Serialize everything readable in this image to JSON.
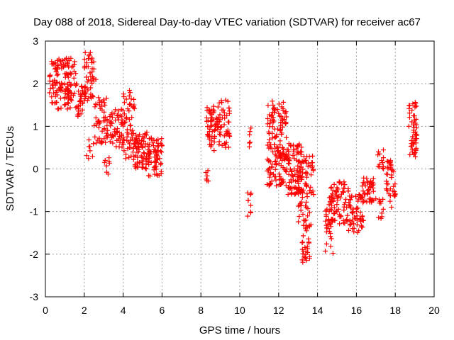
{
  "chart_data": {
    "type": "scatter",
    "title": "Day 088 of 2018, Sidereal Day-to-day VTEC variation (SDTVAR) for receiver ac67",
    "xlabel": "GPS time / hours",
    "ylabel": "SDTVAR / TECUs",
    "xlim": [
      0,
      20
    ],
    "ylim": [
      -3,
      3
    ],
    "xticks": [
      0,
      2,
      4,
      6,
      8,
      10,
      12,
      14,
      16,
      18,
      20
    ],
    "yticks": [
      -3,
      -2,
      -1,
      0,
      1,
      2,
      3
    ],
    "xtick_labels": [
      "0",
      "2",
      "4",
      "6",
      "8",
      "10",
      "12",
      "14",
      "16",
      "18",
      "20"
    ],
    "ytick_labels": [
      "-3",
      "-2",
      "-1",
      "0",
      "1",
      "2",
      "3"
    ],
    "grid": true,
    "marker": "+",
    "color": "#ff0000",
    "series": [
      {
        "name": "SDTVAR",
        "trend": [
          [
            0.25,
            2.2
          ],
          [
            0.4,
            1.9
          ],
          [
            0.6,
            2.2
          ],
          [
            0.8,
            1.9
          ],
          [
            1.0,
            2.0
          ],
          [
            1.2,
            1.85
          ],
          [
            1.5,
            2.0
          ],
          [
            1.8,
            1.5
          ],
          [
            2.0,
            1.6
          ],
          [
            2.2,
            2.4
          ],
          [
            2.4,
            2.6
          ],
          [
            2.6,
            2.1
          ],
          [
            2.8,
            1.6
          ],
          [
            3.0,
            1.2
          ],
          [
            3.2,
            0.9
          ],
          [
            3.4,
            1.1
          ],
          [
            3.6,
            0.8
          ],
          [
            3.8,
            0.85
          ],
          [
            4.0,
            0.7
          ],
          [
            4.2,
            0.75
          ],
          [
            4.4,
            0.5
          ],
          [
            4.6,
            0.6
          ],
          [
            4.8,
            0.4
          ],
          [
            5.0,
            0.5
          ],
          [
            5.2,
            0.3
          ],
          [
            5.4,
            0.4
          ],
          [
            5.6,
            0.45
          ],
          [
            5.8,
            0.6
          ],
          [
            6.0,
            0.55
          ],
          [
            8.3,
            1.2
          ],
          [
            8.5,
            1.0
          ],
          [
            8.7,
            0.9
          ],
          [
            8.9,
            1.0
          ],
          [
            9.1,
            1.2
          ],
          [
            9.3,
            0.8
          ],
          [
            9.4,
            1.1
          ],
          [
            10.5,
            0.8
          ],
          [
            10.55,
            -0.6
          ],
          [
            11.5,
            0.2
          ],
          [
            11.7,
            0.4
          ],
          [
            11.9,
            0.8
          ],
          [
            12.0,
            1.3
          ],
          [
            12.2,
            0.5
          ],
          [
            12.5,
            0.2
          ],
          [
            12.8,
            0.0
          ],
          [
            13.0,
            -0.3
          ],
          [
            13.2,
            -0.5
          ],
          [
            13.4,
            -1.2
          ],
          [
            13.6,
            -0.5
          ],
          [
            13.8,
            -0.6
          ],
          [
            14.6,
            -1.0
          ],
          [
            14.8,
            -0.5
          ],
          [
            15.0,
            -1.0
          ],
          [
            15.2,
            -1.1
          ],
          [
            15.5,
            -0.9
          ],
          [
            15.8,
            -1.2
          ],
          [
            16.0,
            -1.0
          ],
          [
            16.3,
            -0.4
          ],
          [
            16.6,
            -0.5
          ],
          [
            17.0,
            -0.7
          ],
          [
            17.3,
            0.2
          ],
          [
            17.6,
            -0.5
          ],
          [
            17.8,
            -0.2
          ],
          [
            18.0,
            -0.6
          ],
          [
            18.7,
            1.0
          ],
          [
            18.9,
            0.6
          ],
          [
            19.1,
            0.8
          ]
        ],
        "clusters": [
          {
            "x": [
              0.2,
              1.6
            ],
            "y": [
              1.4,
              2.6
            ],
            "n": 130
          },
          {
            "x": [
              1.6,
              2.0
            ],
            "y": [
              1.2,
              2.0
            ],
            "n": 25
          },
          {
            "x": [
              2.0,
              2.5
            ],
            "y": [
              1.6,
              2.75
            ],
            "n": 45
          },
          {
            "x": [
              2.1,
              2.5
            ],
            "y": [
              0.2,
              0.7
            ],
            "n": 8
          },
          {
            "x": [
              2.5,
              3.2
            ],
            "y": [
              0.6,
              1.7
            ],
            "n": 50
          },
          {
            "x": [
              3.2,
              4.0
            ],
            "y": [
              0.5,
              1.4
            ],
            "n": 50
          },
          {
            "x": [
              3.0,
              3.3
            ],
            "y": [
              -0.15,
              0.3
            ],
            "n": 8
          },
          {
            "x": [
              4.0,
              4.6
            ],
            "y": [
              0.2,
              1.9
            ],
            "n": 60
          },
          {
            "x": [
              4.6,
              5.4
            ],
            "y": [
              0.0,
              0.9
            ],
            "n": 70
          },
          {
            "x": [
              5.3,
              6.0
            ],
            "y": [
              -0.2,
              0.75
            ],
            "n": 55
          },
          {
            "x": [
              8.3,
              8.9
            ],
            "y": [
              0.7,
              1.5
            ],
            "n": 45
          },
          {
            "x": [
              8.2,
              8.4
            ],
            "y": [
              -0.3,
              0.0
            ],
            "n": 6
          },
          {
            "x": [
              8.4,
              8.7
            ],
            "y": [
              0.4,
              0.8
            ],
            "n": 10
          },
          {
            "x": [
              8.9,
              9.5
            ],
            "y": [
              0.5,
              1.65
            ],
            "n": 45
          },
          {
            "x": [
              10.4,
              10.6
            ],
            "y": [
              0.5,
              1.0
            ],
            "n": 5
          },
          {
            "x": [
              10.4,
              10.6
            ],
            "y": [
              -1.15,
              -0.4
            ],
            "n": 8
          },
          {
            "x": [
              11.4,
              12.4
            ],
            "y": [
              -0.4,
              1.6
            ],
            "n": 150
          },
          {
            "x": [
              12.4,
              13.2
            ],
            "y": [
              -0.6,
              0.6
            ],
            "n": 90
          },
          {
            "x": [
              13.0,
              13.8
            ],
            "y": [
              -1.4,
              0.4
            ],
            "n": 80
          },
          {
            "x": [
              13.2,
              13.6
            ],
            "y": [
              -2.3,
              -1.4
            ],
            "n": 25
          },
          {
            "x": [
              14.4,
              14.8
            ],
            "y": [
              -2.1,
              -0.8
            ],
            "n": 30
          },
          {
            "x": [
              14.6,
              15.6
            ],
            "y": [
              -1.3,
              -0.3
            ],
            "n": 70
          },
          {
            "x": [
              15.6,
              16.4
            ],
            "y": [
              -1.5,
              -0.6
            ],
            "n": 55
          },
          {
            "x": [
              16.3,
              16.9
            ],
            "y": [
              -0.8,
              -0.2
            ],
            "n": 40
          },
          {
            "x": [
              17.1,
              17.4
            ],
            "y": [
              0.0,
              0.45
            ],
            "n": 12
          },
          {
            "x": [
              17.1,
              17.4
            ],
            "y": [
              -1.2,
              -0.7
            ],
            "n": 10
          },
          {
            "x": [
              17.5,
              18.0
            ],
            "y": [
              -0.9,
              0.2
            ],
            "n": 35
          },
          {
            "x": [
              18.7,
              19.1
            ],
            "y": [
              0.2,
              1.7
            ],
            "n": 50
          }
        ]
      }
    ]
  }
}
